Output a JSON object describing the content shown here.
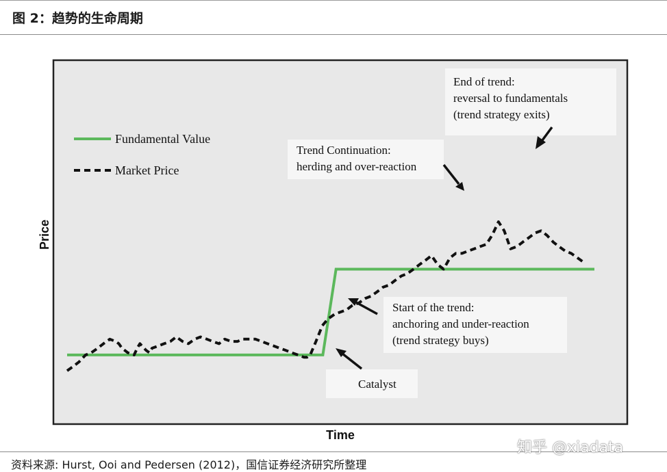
{
  "figure": {
    "title": "图 2：趋势的生命周期",
    "source": "资料来源: Hurst, Ooi and Pedersen (2012)，国信证券经济研究所整理",
    "watermark": "知乎 @xiadata"
  },
  "colors": {
    "fundamental": "#5cb85c",
    "market": "#111111",
    "plot_bg": "#e8e8e8",
    "note_bg": "#f6f6f6"
  },
  "chart_data": {
    "type": "line",
    "title": "",
    "xlabel": "Time",
    "ylabel": "Price",
    "xlim": [
      0,
      100
    ],
    "ylim": [
      0,
      100
    ],
    "grid": false,
    "legend_position": "top-left",
    "legend": [
      "Fundamental Value",
      "Market Price"
    ],
    "series": [
      {
        "name": "Fundamental Value",
        "style": "solid",
        "x": [
          0,
          48.5,
          51,
          100
        ],
        "y": [
          17,
          17,
          55,
          55
        ]
      },
      {
        "name": "Market Price",
        "style": "dashed",
        "x": [
          0,
          1.2,
          2.3,
          3.5,
          4.6,
          5.8,
          6.9,
          8.1,
          9.2,
          9.8,
          10.4,
          11.5,
          12.7,
          13.3,
          13.8,
          15.0,
          15.6,
          16.1,
          17.3,
          18.4,
          19.6,
          20.7,
          21.9,
          23.0,
          24.2,
          25.3,
          26.5,
          27.6,
          28.8,
          29.9,
          31.1,
          32.3,
          33.4,
          34.6,
          35.7,
          36.9,
          38.0,
          39.2,
          40.3,
          41.5,
          42.6,
          43.8,
          44.9,
          45.5,
          46.1,
          47.2,
          48.4,
          49.5,
          50.7,
          51.8,
          53.0,
          54.1,
          55.3,
          56.5,
          57.6,
          58.8,
          59.9,
          61.1,
          62.2,
          63.4,
          64.5,
          65.7,
          66.8,
          68.0,
          69.1,
          70.3,
          71.4,
          72.6,
          73.7,
          74.9,
          76.0,
          77.2,
          78.3,
          79.5,
          80.6,
          81.8,
          82.9,
          84.1,
          85.3,
          86.4,
          87.6,
          88.7,
          89.9,
          91.0,
          92.2,
          93.3,
          94.5,
          95.6,
          96.8,
          98.0
        ],
        "y": [
          10,
          12,
          14,
          17,
          18,
          20,
          22,
          24,
          23,
          22,
          20,
          18,
          17,
          20,
          22,
          19,
          18,
          20,
          21,
          22,
          23,
          25,
          23,
          22,
          24,
          25,
          24,
          23,
          22,
          24,
          23,
          23,
          24,
          24,
          24,
          23,
          22,
          21,
          20,
          19,
          18,
          17,
          16,
          16,
          17,
          23,
          30,
          33,
          35,
          36,
          37,
          39,
          40,
          42,
          43,
          45,
          47,
          48,
          50,
          52,
          53,
          55,
          57,
          59,
          61,
          57,
          55,
          60,
          62,
          62,
          63,
          64,
          65,
          66,
          70,
          76,
          72,
          64,
          65,
          67,
          69,
          71,
          72,
          70,
          67,
          65,
          63,
          62,
          60,
          58
        ]
      }
    ],
    "annotations": [
      {
        "lines": [
          "End of trend:",
          "reversal to fundamentals",
          "(trend strategy exits)"
        ]
      },
      {
        "lines": [
          "Trend Continuation:",
          "herding and over-reaction"
        ]
      },
      {
        "lines": [
          "Start of the trend:",
          "anchoring and under-reaction",
          "(trend strategy buys)"
        ]
      },
      {
        "lines": [
          "Catalyst"
        ]
      }
    ]
  }
}
